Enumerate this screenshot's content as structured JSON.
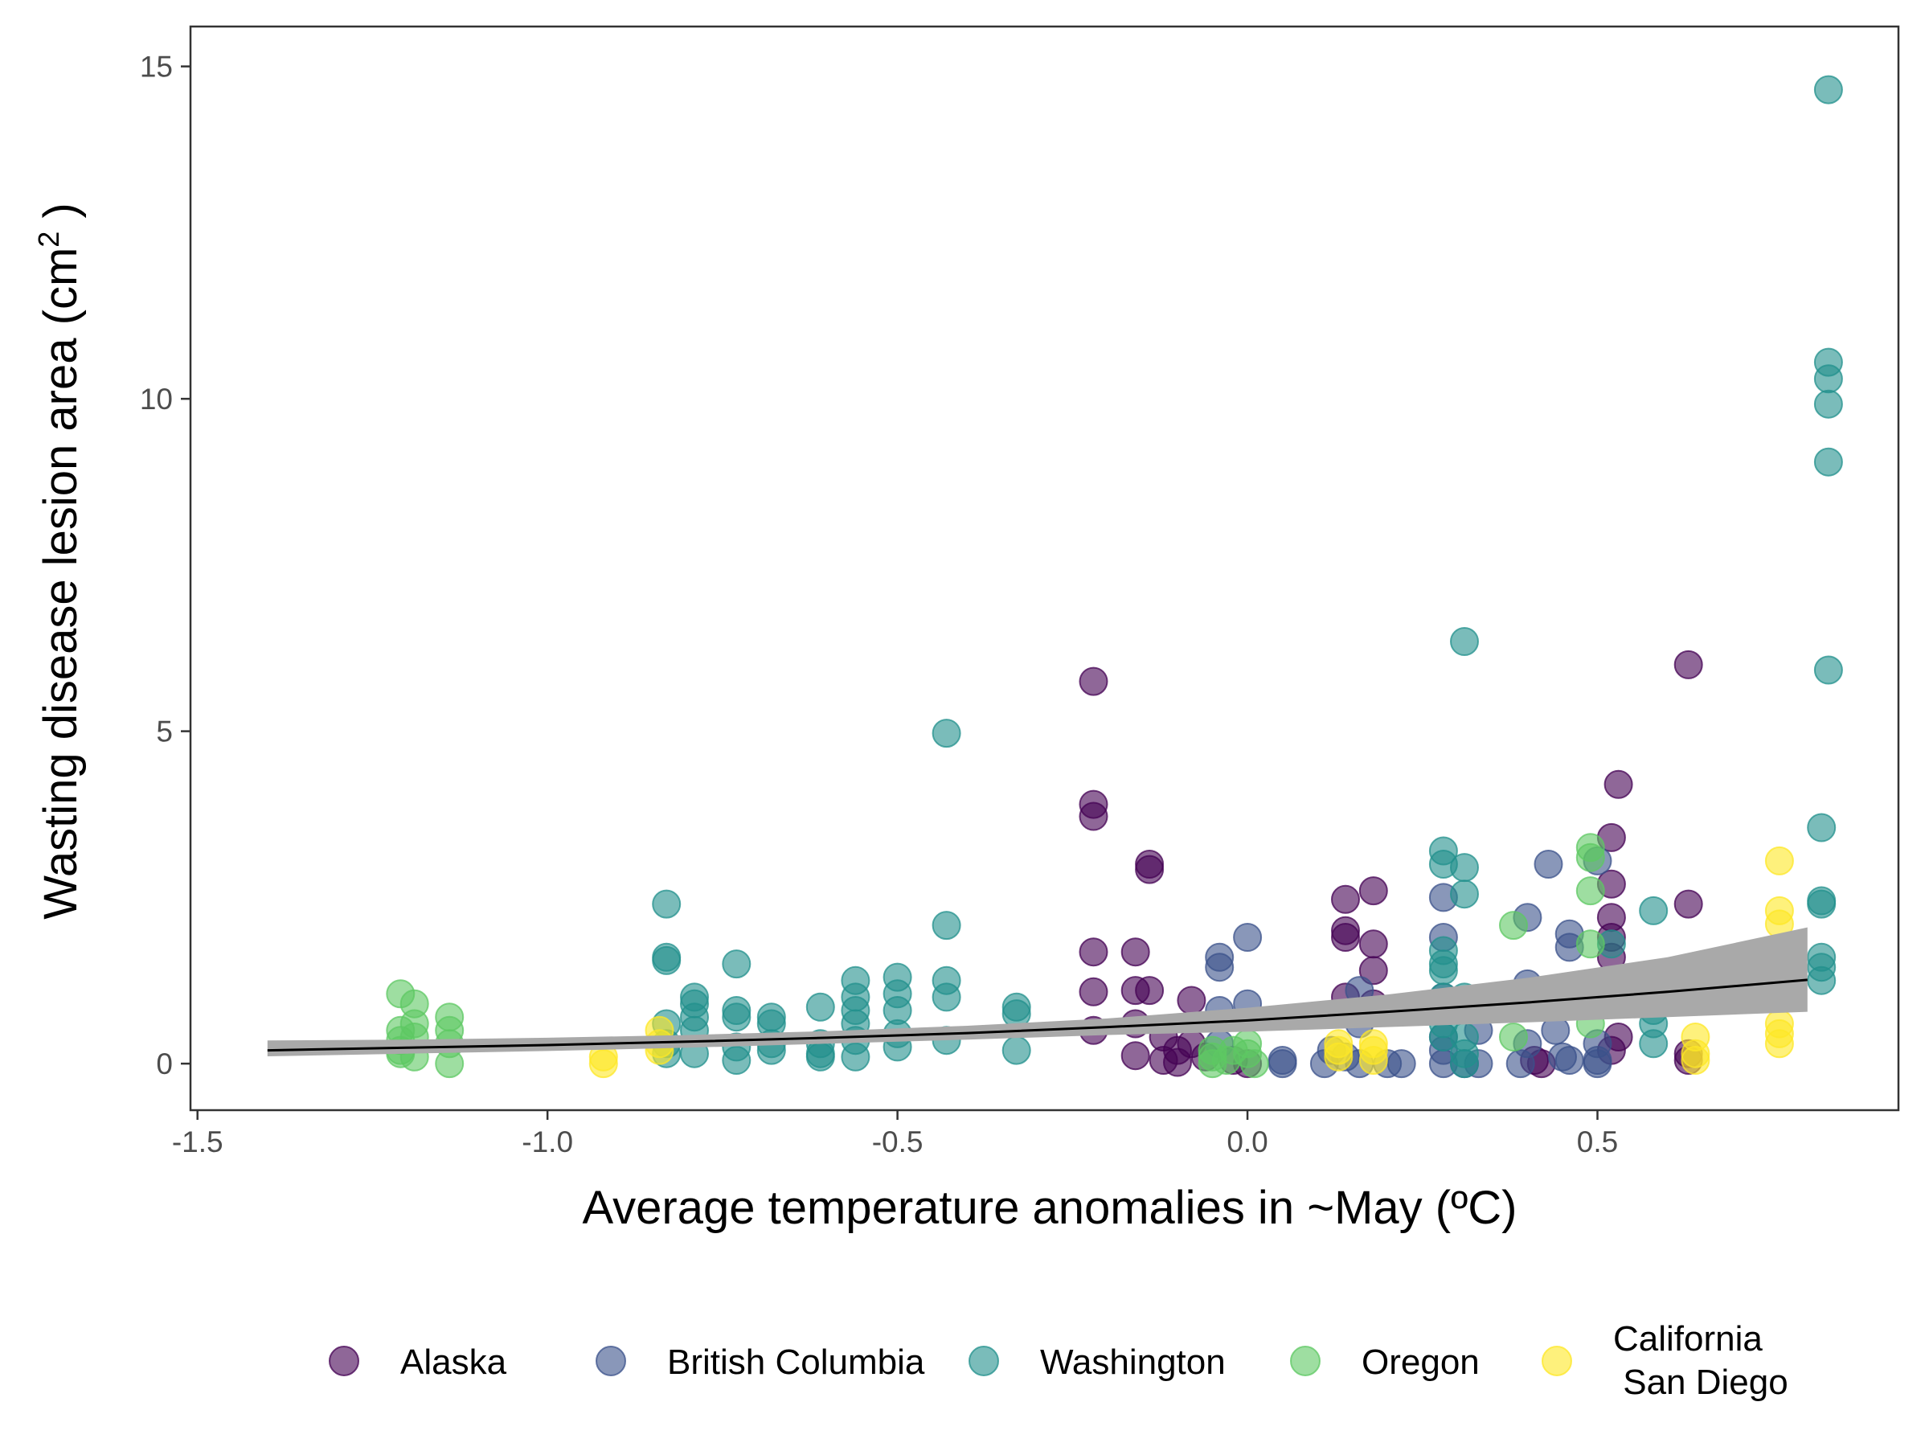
{
  "chart_data": {
    "type": "scatter",
    "xlabel": "Average temperature anomalies in ~May (ºC)",
    "ylabel": "Wasting disease lesion area (cm",
    "ylabel_superscript": "2",
    "ylabel_close": " )",
    "xlim": [
      -1.51,
      0.93
    ],
    "ylim": [
      -0.7,
      15.6
    ],
    "x_ticks": [
      {
        "value": -1.5,
        "label": "-1.5"
      },
      {
        "value": -1.0,
        "label": "-1.0"
      },
      {
        "value": -0.5,
        "label": "-0.5"
      },
      {
        "value": 0.0,
        "label": "0.0"
      },
      {
        "value": 0.5,
        "label": "0.5"
      }
    ],
    "y_ticks": [
      {
        "value": 0,
        "label": "0"
      },
      {
        "value": 5,
        "label": "5"
      },
      {
        "value": 10,
        "label": "10"
      },
      {
        "value": 15,
        "label": "15"
      }
    ],
    "grid": false,
    "legend_position": "bottom",
    "legend": [
      {
        "label": "Alaska",
        "color": "#440154"
      },
      {
        "label": "British Columbia",
        "color": "#3b528b"
      },
      {
        "label": "Washington",
        "color": "#21908c"
      },
      {
        "label": "Oregon",
        "color": "#5dc863"
      },
      {
        "label": "California\n San Diego",
        "color": "#fde725"
      }
    ],
    "fit": {
      "x": [
        -1.4,
        -1.2,
        -1.0,
        -0.8,
        -0.6,
        -0.4,
        -0.2,
        0.0,
        0.2,
        0.4,
        0.6,
        0.8
      ],
      "y": [
        0.2,
        0.24,
        0.28,
        0.33,
        0.39,
        0.46,
        0.55,
        0.65,
        0.78,
        0.92,
        1.08,
        1.26
      ],
      "lower": [
        0.11,
        0.15,
        0.19,
        0.24,
        0.3,
        0.36,
        0.43,
        0.48,
        0.55,
        0.62,
        0.7,
        0.78
      ],
      "upper": [
        0.35,
        0.36,
        0.39,
        0.43,
        0.49,
        0.57,
        0.68,
        0.84,
        1.04,
        1.29,
        1.6,
        2.05
      ]
    },
    "series": [
      {
        "name": "Alaska",
        "color": "#440154",
        "points": [
          [
            -0.22,
            5.75
          ],
          [
            -0.22,
            3.9
          ],
          [
            -0.22,
            3.72
          ],
          [
            -0.22,
            1.68
          ],
          [
            -0.22,
            1.08
          ],
          [
            -0.22,
            0.5
          ],
          [
            -0.14,
            3.0
          ],
          [
            -0.14,
            2.92
          ],
          [
            -0.14,
            1.1
          ],
          [
            -0.16,
            1.68
          ],
          [
            -0.16,
            1.1
          ],
          [
            -0.16,
            0.6
          ],
          [
            -0.16,
            0.12
          ],
          [
            -0.12,
            0.4
          ],
          [
            -0.1,
            0.2
          ],
          [
            -0.08,
            0.95
          ],
          [
            -0.08,
            0.3
          ],
          [
            -0.12,
            0.05
          ],
          [
            -0.1,
            0.02
          ],
          [
            -0.06,
            0.1
          ],
          [
            -0.02,
            0.05
          ],
          [
            0.0,
            0.0
          ],
          [
            0.14,
            2.47
          ],
          [
            0.14,
            2.0
          ],
          [
            0.14,
            1.9
          ],
          [
            0.14,
            1.0
          ],
          [
            0.18,
            2.6
          ],
          [
            0.18,
            1.8
          ],
          [
            0.18,
            1.4
          ],
          [
            0.18,
            0.9
          ],
          [
            0.42,
            0.0
          ],
          [
            0.41,
            0.05
          ],
          [
            0.53,
            4.2
          ],
          [
            0.52,
            3.4
          ],
          [
            0.52,
            2.7
          ],
          [
            0.52,
            2.2
          ],
          [
            0.52,
            1.9
          ],
          [
            0.52,
            1.6
          ],
          [
            0.53,
            1.0
          ],
          [
            0.53,
            0.4
          ],
          [
            0.52,
            0.2
          ],
          [
            0.63,
            6.0
          ],
          [
            0.63,
            2.4
          ],
          [
            0.63,
            0.15
          ],
          [
            0.63,
            0.05
          ]
        ]
      },
      {
        "name": "British Columbia",
        "color": "#3b528b",
        "points": [
          [
            -0.04,
            1.6
          ],
          [
            -0.04,
            1.45
          ],
          [
            0.0,
            1.9
          ],
          [
            0.0,
            0.9
          ],
          [
            -0.04,
            0.8
          ],
          [
            -0.04,
            0.3
          ],
          [
            0.05,
            0.0
          ],
          [
            0.05,
            0.05
          ],
          [
            0.11,
            0.0
          ],
          [
            0.12,
            0.2
          ],
          [
            0.14,
            0.1
          ],
          [
            0.16,
            1.1
          ],
          [
            0.16,
            0.6
          ],
          [
            0.16,
            0.0
          ],
          [
            0.2,
            0.0
          ],
          [
            0.22,
            0.0
          ],
          [
            0.28,
            2.5
          ],
          [
            0.28,
            1.9
          ],
          [
            0.28,
            1.0
          ],
          [
            0.28,
            0.4
          ],
          [
            0.28,
            0.2
          ],
          [
            0.28,
            0.0
          ],
          [
            0.31,
            0.0
          ],
          [
            0.33,
            0.0
          ],
          [
            0.33,
            0.5
          ],
          [
            0.4,
            2.2
          ],
          [
            0.4,
            1.2
          ],
          [
            0.4,
            0.3
          ],
          [
            0.39,
            0.0
          ],
          [
            0.43,
            3.0
          ],
          [
            0.44,
            0.5
          ],
          [
            0.46,
            1.95
          ],
          [
            0.46,
            1.75
          ],
          [
            0.46,
            0.05
          ],
          [
            0.45,
            0.1
          ],
          [
            0.5,
            3.05
          ],
          [
            0.5,
            0.3
          ],
          [
            0.5,
            0.05
          ],
          [
            0.5,
            0.0
          ]
        ]
      },
      {
        "name": "Washington",
        "color": "#21908c",
        "points": [
          [
            -0.83,
            2.4
          ],
          [
            -0.83,
            1.6
          ],
          [
            -0.83,
            1.55
          ],
          [
            -0.83,
            0.6
          ],
          [
            -0.83,
            0.3
          ],
          [
            -0.83,
            0.15
          ],
          [
            -0.79,
            1.0
          ],
          [
            -0.79,
            0.9
          ],
          [
            -0.79,
            0.7
          ],
          [
            -0.79,
            0.5
          ],
          [
            -0.79,
            0.15
          ],
          [
            -0.73,
            1.5
          ],
          [
            -0.73,
            0.8
          ],
          [
            -0.73,
            0.7
          ],
          [
            -0.73,
            0.25
          ],
          [
            -0.73,
            0.05
          ],
          [
            -0.68,
            0.7
          ],
          [
            -0.68,
            0.6
          ],
          [
            -0.68,
            0.3
          ],
          [
            -0.68,
            0.2
          ],
          [
            -0.61,
            0.85
          ],
          [
            -0.61,
            0.3
          ],
          [
            -0.61,
            0.15
          ],
          [
            -0.61,
            0.1
          ],
          [
            -0.56,
            1.25
          ],
          [
            -0.56,
            1.0
          ],
          [
            -0.56,
            0.8
          ],
          [
            -0.56,
            0.6
          ],
          [
            -0.56,
            0.35
          ],
          [
            -0.56,
            0.1
          ],
          [
            -0.5,
            1.3
          ],
          [
            -0.5,
            1.05
          ],
          [
            -0.5,
            0.8
          ],
          [
            -0.5,
            0.45
          ],
          [
            -0.5,
            0.25
          ],
          [
            -0.43,
            4.97
          ],
          [
            -0.43,
            2.08
          ],
          [
            -0.43,
            1.25
          ],
          [
            -0.43,
            1.0
          ],
          [
            -0.43,
            0.35
          ],
          [
            -0.33,
            0.85
          ],
          [
            -0.33,
            0.75
          ],
          [
            -0.33,
            0.2
          ],
          [
            0.28,
            3.2
          ],
          [
            0.28,
            3.0
          ],
          [
            0.28,
            1.7
          ],
          [
            0.28,
            1.5
          ],
          [
            0.28,
            1.4
          ],
          [
            0.28,
            1.0
          ],
          [
            0.28,
            0.6
          ],
          [
            0.28,
            0.4
          ],
          [
            0.31,
            6.35
          ],
          [
            0.31,
            2.95
          ],
          [
            0.31,
            2.55
          ],
          [
            0.31,
            1.0
          ],
          [
            0.31,
            0.4
          ],
          [
            0.31,
            0.15
          ],
          [
            0.31,
            0.0
          ],
          [
            0.52,
            1.8
          ],
          [
            0.52,
            1.0
          ],
          [
            0.58,
            2.3
          ],
          [
            0.58,
            0.8
          ],
          [
            0.58,
            0.6
          ],
          [
            0.58,
            0.3
          ],
          [
            0.82,
            3.55
          ],
          [
            0.82,
            2.45
          ],
          [
            0.82,
            2.4
          ],
          [
            0.82,
            1.6
          ],
          [
            0.82,
            1.45
          ],
          [
            0.82,
            1.25
          ],
          [
            0.83,
            14.65
          ],
          [
            0.83,
            10.55
          ],
          [
            0.83,
            10.3
          ],
          [
            0.83,
            9.92
          ],
          [
            0.83,
            9.05
          ],
          [
            0.83,
            5.92
          ]
        ]
      },
      {
        "name": "Oregon",
        "color": "#5dc863",
        "points": [
          [
            -1.21,
            1.05
          ],
          [
            -1.21,
            0.5
          ],
          [
            -1.21,
            0.35
          ],
          [
            -1.21,
            0.2
          ],
          [
            -1.21,
            0.15
          ],
          [
            -1.19,
            0.9
          ],
          [
            -1.19,
            0.6
          ],
          [
            -1.19,
            0.4
          ],
          [
            -1.19,
            0.1
          ],
          [
            -1.14,
            0.7
          ],
          [
            -1.14,
            0.5
          ],
          [
            -1.14,
            0.3
          ],
          [
            -1.14,
            0.0
          ],
          [
            -0.05,
            0.2
          ],
          [
            -0.05,
            0.1
          ],
          [
            -0.05,
            0.0
          ],
          [
            -0.03,
            0.05
          ],
          [
            -0.02,
            0.2
          ],
          [
            0.0,
            0.15
          ],
          [
            0.0,
            0.3
          ],
          [
            0.01,
            0.0
          ],
          [
            0.38,
            2.08
          ],
          [
            0.38,
            0.4
          ],
          [
            0.49,
            3.25
          ],
          [
            0.49,
            3.1
          ],
          [
            0.49,
            2.6
          ],
          [
            0.49,
            1.8
          ],
          [
            0.49,
            0.6
          ]
        ]
      },
      {
        "name": "California\n San Diego",
        "color": "#fde725",
        "points": [
          [
            -0.92,
            0.1
          ],
          [
            -0.92,
            0.0
          ],
          [
            -0.84,
            0.5
          ],
          [
            -0.84,
            0.3
          ],
          [
            -0.84,
            0.2
          ],
          [
            0.13,
            0.3
          ],
          [
            0.13,
            0.2
          ],
          [
            0.13,
            0.1
          ],
          [
            0.18,
            0.3
          ],
          [
            0.18,
            0.2
          ],
          [
            0.18,
            0.05
          ],
          [
            0.64,
            0.4
          ],
          [
            0.64,
            0.15
          ],
          [
            0.64,
            0.05
          ],
          [
            0.76,
            3.05
          ],
          [
            0.76,
            2.3
          ],
          [
            0.76,
            2.1
          ],
          [
            0.76,
            0.6
          ],
          [
            0.76,
            0.45
          ],
          [
            0.76,
            0.3
          ]
        ]
      }
    ]
  }
}
